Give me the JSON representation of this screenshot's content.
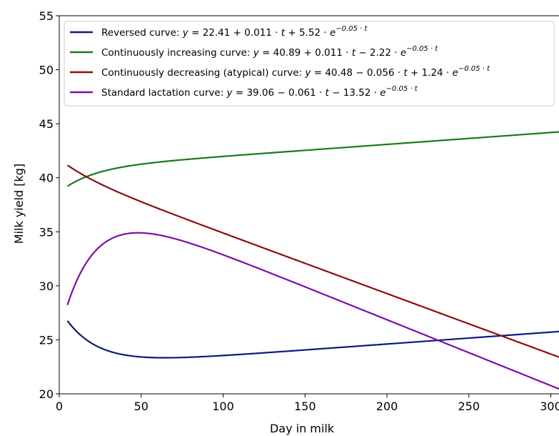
{
  "chart_data": {
    "type": "line",
    "xlabel": "Day in milk",
    "ylabel": "Milk yield [kg]",
    "xlim": [
      0,
      305
    ],
    "ylim": [
      20,
      55
    ],
    "xticks": [
      0,
      50,
      100,
      150,
      200,
      250,
      300
    ],
    "yticks": [
      20,
      25,
      30,
      35,
      40,
      45,
      50,
      55
    ],
    "grid": false,
    "legend_position": "top-left",
    "x_range": [
      5,
      305
    ],
    "series": [
      {
        "name": "Reversed curve",
        "color": "#0d1a7a",
        "params": {
          "a": 22.41,
          "b": 0.011,
          "c": 5.52,
          "k": -0.05
        },
        "legend_parts": [
          {
            "t": "Reversed curve: "
          },
          {
            "t": "y",
            "i": true
          },
          {
            "t": " = 22.41 + 0.011 · "
          },
          {
            "t": "t",
            "i": true
          },
          {
            "t": " + 5.52 · "
          },
          {
            "t": "e",
            "i": true
          },
          {
            "t": "−0.05 · t",
            "sup": true
          }
        ]
      },
      {
        "name": "Continuously increasing curve",
        "color": "#1a7a1a",
        "params": {
          "a": 40.89,
          "b": 0.011,
          "c": -2.22,
          "k": -0.05
        },
        "legend_parts": [
          {
            "t": "Continuously increasing curve: "
          },
          {
            "t": "y",
            "i": true
          },
          {
            "t": " = 40.89 + 0.011 · "
          },
          {
            "t": "t",
            "i": true
          },
          {
            "t": " − 2.22 · "
          },
          {
            "t": "e",
            "i": true
          },
          {
            "t": "−0.05 · t",
            "sup": true
          }
        ]
      },
      {
        "name": "Continuously decreasing (atypical) curve",
        "color": "#8b0e0e",
        "params": {
          "a": 40.48,
          "b": -0.056,
          "c": 1.24,
          "k": -0.05
        },
        "legend_parts": [
          {
            "t": "Continuously decreasing (atypical) curve: "
          },
          {
            "t": "y",
            "i": true
          },
          {
            "t": " = 40.48 − 0.056 · "
          },
          {
            "t": "t",
            "i": true
          },
          {
            "t": " + 1.24 · "
          },
          {
            "t": "e",
            "i": true
          },
          {
            "t": "−0.05 · t",
            "sup": true
          }
        ]
      },
      {
        "name": "Standard lactation curve",
        "color": "#7d0ea8",
        "params": {
          "a": 39.06,
          "b": -0.061,
          "c": -13.52,
          "k": -0.05
        },
        "legend_parts": [
          {
            "t": "Standard lactation curve: "
          },
          {
            "t": "y",
            "i": true
          },
          {
            "t": " = 39.06 − 0.061 · "
          },
          {
            "t": "t",
            "i": true
          },
          {
            "t": " − 13.52 · "
          },
          {
            "t": "e",
            "i": true
          },
          {
            "t": "−0.05 · t",
            "sup": true
          }
        ]
      }
    ]
  }
}
